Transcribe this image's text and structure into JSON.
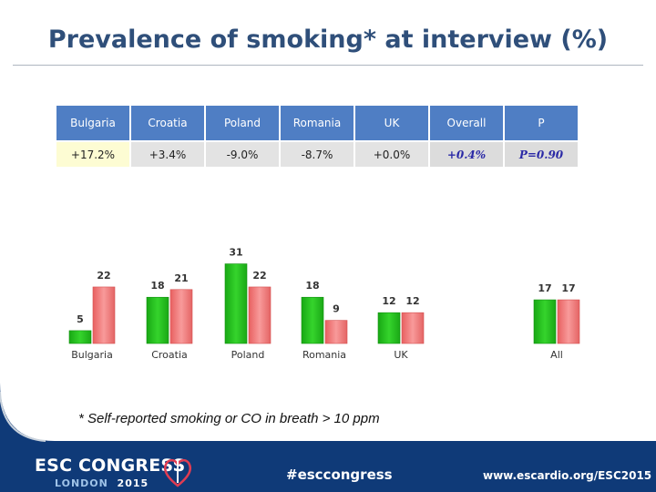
{
  "title": "Prevalence of smoking* at interview (%)",
  "table": {
    "headers": [
      "Bulgaria",
      "Croatia",
      "Poland",
      "Romania",
      "UK",
      "Overall",
      "P"
    ],
    "row": [
      "+17.2%",
      "+3.4%",
      "-9.0%",
      "-8.7%",
      "+0.0%",
      "+0.4%",
      "P=0.90"
    ]
  },
  "chart_data": {
    "type": "bar",
    "categories": [
      "Bulgaria",
      "Croatia",
      "Poland",
      "Romania",
      "UK",
      "All"
    ],
    "series": [
      {
        "name": "Green",
        "color": "#24c21e",
        "values": [
          5,
          18,
          31,
          18,
          12,
          17
        ]
      },
      {
        "name": "Red",
        "color": "#f07474",
        "values": [
          22,
          21,
          22,
          9,
          12,
          17
        ]
      }
    ],
    "ylim": [
      0,
      31
    ],
    "legend": "none",
    "grid": false
  },
  "footnote": "* Self-reported smoking or CO in breath > 10 ppm",
  "footer": {
    "brand": "ESC CONGRESS",
    "city": "LONDON",
    "year": "2015",
    "hashtag": "#esccongress",
    "website": "www.escardio.org/ESC2015"
  },
  "colors": {
    "title": "#2f4f7a",
    "header": "#4f7ec4",
    "footer": "#0f3a78"
  }
}
